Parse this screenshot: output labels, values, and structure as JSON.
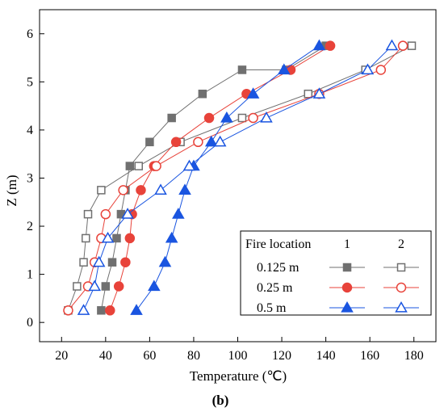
{
  "chart_data": {
    "type": "scatter",
    "title": "",
    "xlabel": "Temperature (℃)",
    "ylabel": "Z (m)",
    "xlim": [
      10,
      190
    ],
    "ylim": [
      -0.4,
      6.5
    ],
    "xticks": [
      20,
      40,
      60,
      80,
      100,
      120,
      140,
      160,
      180
    ],
    "yticks": [
      0,
      1,
      2,
      3,
      4,
      5,
      6
    ],
    "grid": false,
    "legend": {
      "placement": "bottom-right",
      "title": "Fire location",
      "columns": [
        "1",
        "2"
      ]
    },
    "panel_label": "(b)",
    "series": [
      {
        "name": "0.125 m",
        "location": "1",
        "marker": "square-filled",
        "color": "#707070",
        "x": [
          38,
          40,
          43,
          45,
          47,
          49,
          51,
          60,
          70,
          84,
          102,
          122,
          140
        ],
        "y": [
          0.25,
          0.75,
          1.25,
          1.75,
          2.25,
          2.75,
          3.25,
          3.75,
          4.25,
          4.75,
          5.25,
          5.25,
          5.75
        ]
      },
      {
        "name": "0.125 m",
        "location": "2",
        "marker": "square-open",
        "color": "#707070",
        "x": [
          23,
          27,
          30,
          31,
          32,
          38,
          55,
          74,
          102,
          132,
          158,
          179
        ],
        "y": [
          0.25,
          0.75,
          1.25,
          1.75,
          2.25,
          2.75,
          3.25,
          3.75,
          4.25,
          4.75,
          5.25,
          5.75
        ]
      },
      {
        "name": "0.25 m",
        "location": "1",
        "marker": "circle-filled",
        "color": "#e8433a",
        "x": [
          42,
          46,
          49,
          51,
          52,
          56,
          62,
          72,
          87,
          104,
          124,
          142
        ],
        "y": [
          0.25,
          0.75,
          1.25,
          1.75,
          2.25,
          2.75,
          3.25,
          3.75,
          4.25,
          4.75,
          5.25,
          5.75
        ]
      },
      {
        "name": "0.25 m",
        "location": "2",
        "marker": "circle-open",
        "color": "#e8433a",
        "x": [
          23,
          32,
          35,
          38,
          40,
          48,
          63,
          82,
          107,
          137,
          165,
          175
        ],
        "y": [
          0.25,
          0.75,
          1.25,
          1.75,
          2.25,
          2.75,
          3.25,
          3.75,
          4.25,
          4.75,
          5.25,
          5.75
        ]
      },
      {
        "name": "0.5 m",
        "location": "1",
        "marker": "triangle-filled",
        "color": "#1a55e0",
        "x": [
          54,
          62,
          67,
          70,
          73,
          76,
          80,
          88,
          95,
          107,
          121,
          137
        ],
        "y": [
          0.25,
          0.75,
          1.25,
          1.75,
          2.25,
          2.75,
          3.25,
          3.75,
          4.25,
          4.75,
          5.25,
          5.75
        ]
      },
      {
        "name": "0.5 m",
        "location": "2",
        "marker": "triangle-open",
        "color": "#1a55e0",
        "x": [
          30,
          35,
          37,
          41,
          50,
          65,
          78,
          92,
          113,
          137,
          159,
          170
        ],
        "y": [
          0.25,
          0.75,
          1.25,
          1.75,
          2.25,
          2.75,
          3.25,
          3.75,
          4.25,
          4.75,
          5.25,
          5.75
        ]
      }
    ]
  }
}
